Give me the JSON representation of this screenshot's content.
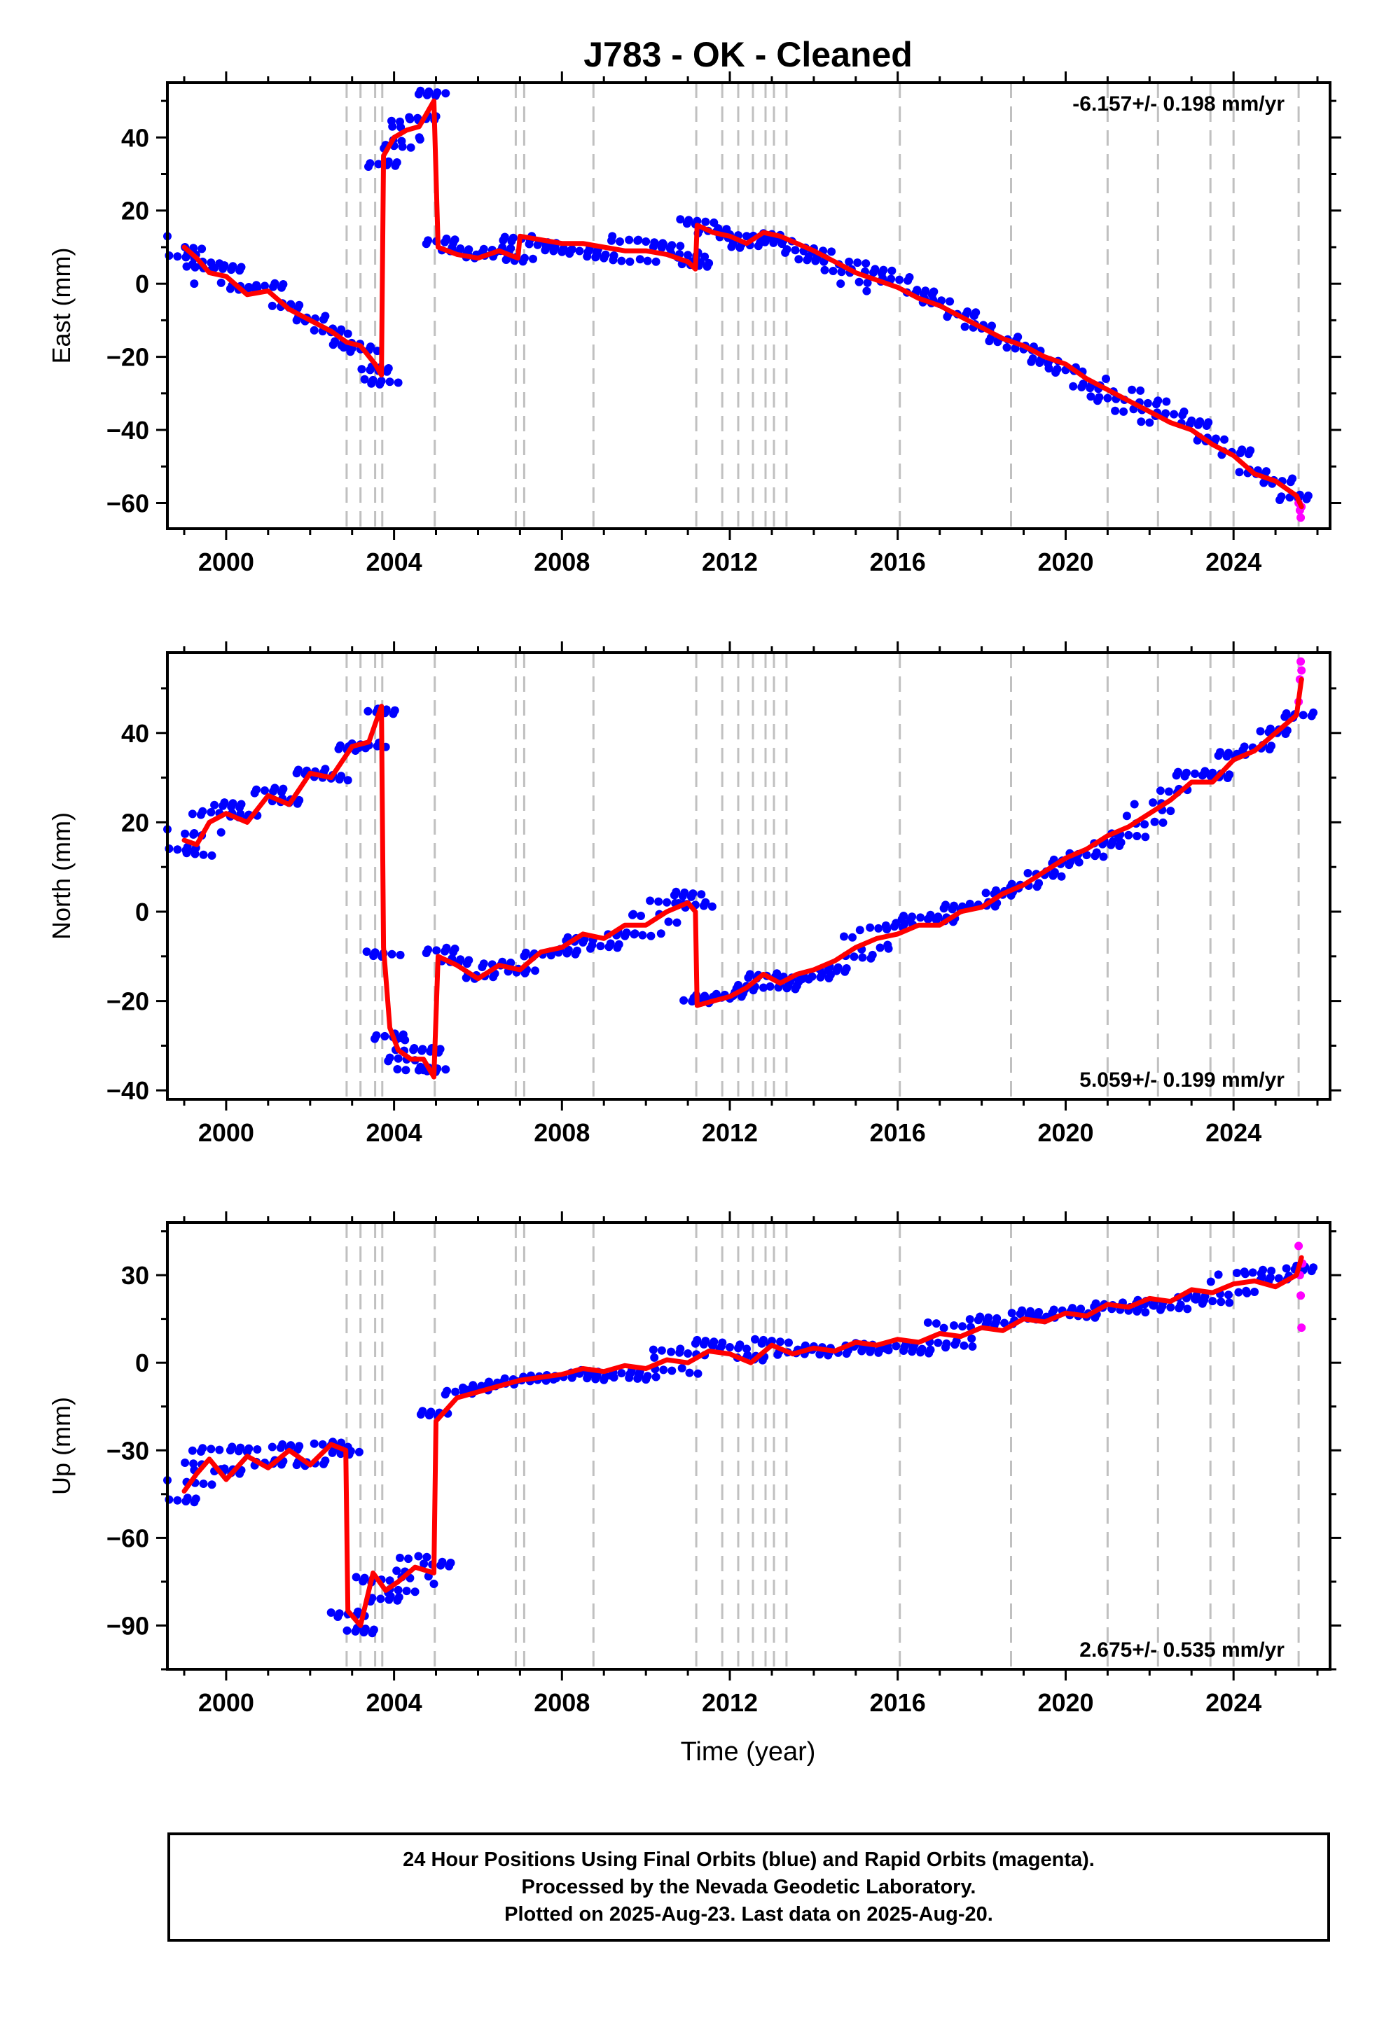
{
  "title": "J783  - OK - Cleaned",
  "colors": {
    "final_orbits": "#0000ff",
    "rapid_orbits": "#ff00ff",
    "model_fit": "#ff0000",
    "event_lines": "#c0c0c0",
    "frame": "#000000"
  },
  "footer": {
    "line1": "24 Hour Positions Using Final Orbits (blue) and Rapid Orbits (magenta).",
    "line2": "Processed by the Nevada Geodetic Laboratory.",
    "line3": "Plotted on 2025-Aug-23. Last data on 2025-Aug-20."
  },
  "chart_data": [
    {
      "type": "scatter",
      "component": "East",
      "ylabel": "East (mm)",
      "xlabel": "",
      "xlim": [
        1998.6,
        2026.3
      ],
      "ylim": [
        -67,
        55
      ],
      "xticks": [
        2000,
        2004,
        2008,
        2012,
        2016,
        2020,
        2024
      ],
      "yticks": [
        -60,
        -40,
        -20,
        0,
        20,
        40
      ],
      "rate_label": "-6.157+/- 0.198 mm/yr",
      "rate_position": "top-right",
      "event_lines": [
        2002.87,
        2003.2,
        2003.55,
        2003.72,
        2004.97,
        2006.9,
        2007.1,
        2008.75,
        2011.2,
        2011.82,
        2012.2,
        2012.55,
        2012.85,
        2013.05,
        2013.35,
        2016.05,
        2018.7,
        2021.0,
        2022.2,
        2023.45,
        2024.0,
        2025.55
      ],
      "series": [
        {
          "name": "Final Orbits",
          "color": "#0000ff",
          "kind": "points",
          "x": [
            1999.0,
            1999.3,
            1999.6,
            2000.0,
            2000.5,
            2001.0,
            2001.5,
            2002.0,
            2002.5,
            2002.87,
            2003.2,
            2003.55,
            2003.7,
            2003.75,
            2004.0,
            2004.3,
            2004.6,
            2004.95,
            2005.05,
            2005.5,
            2006.0,
            2006.5,
            2006.95,
            2007.0,
            2007.5,
            2008.0,
            2008.5,
            2009.0,
            2009.5,
            2010.0,
            2010.5,
            2011.0,
            2011.18,
            2011.22,
            2011.6,
            2012.0,
            2012.4,
            2012.8,
            2013.2,
            2013.6,
            2014.0,
            2014.5,
            2015.0,
            2015.5,
            2016.0,
            2016.5,
            2017.0,
            2017.5,
            2018.0,
            2018.5,
            2019.0,
            2019.5,
            2020.0,
            2020.5,
            2021.0,
            2021.5,
            2022.0,
            2022.5,
            2023.0,
            2023.5,
            2024.0,
            2024.5,
            2025.0,
            2025.5
          ],
          "y": [
            10,
            7,
            3,
            2,
            -3,
            -2,
            -7,
            -10,
            -13,
            -16,
            -17,
            -22,
            -25,
            35,
            40,
            42,
            43,
            50,
            10,
            8,
            7,
            9,
            7,
            13,
            12,
            11,
            11,
            10,
            9,
            9,
            8,
            6,
            4,
            16,
            14,
            13,
            11,
            14,
            13,
            11,
            9,
            6,
            3,
            1,
            -1,
            -4,
            -6,
            -9,
            -12,
            -15,
            -17,
            -20,
            -22,
            -26,
            -29,
            -32,
            -35,
            -38,
            -40,
            -44,
            -47,
            -52,
            -54,
            -58
          ]
        },
        {
          "name": "Rapid Orbits",
          "color": "#ff00ff",
          "kind": "points",
          "x": [
            2025.55,
            2025.58,
            2025.6,
            2025.62
          ],
          "y": [
            -60,
            -62,
            -64,
            -61
          ]
        },
        {
          "name": "Model",
          "color": "#ff0000",
          "kind": "line",
          "x": [
            1999.0,
            1999.3,
            1999.6,
            2000.0,
            2000.5,
            2001.0,
            2001.5,
            2002.0,
            2002.5,
            2002.87,
            2003.2,
            2003.55,
            2003.7,
            2003.75,
            2004.0,
            2004.3,
            2004.6,
            2004.95,
            2005.05,
            2005.5,
            2006.0,
            2006.5,
            2006.95,
            2007.0,
            2007.5,
            2008.0,
            2008.5,
            2009.0,
            2009.5,
            2010.0,
            2010.5,
            2011.0,
            2011.18,
            2011.22,
            2011.6,
            2012.0,
            2012.4,
            2012.8,
            2013.2,
            2013.6,
            2014.0,
            2014.5,
            2015.0,
            2015.5,
            2016.0,
            2016.5,
            2017.0,
            2017.5,
            2018.0,
            2018.5,
            2019.0,
            2019.5,
            2020.0,
            2020.5,
            2021.0,
            2021.5,
            2022.0,
            2022.5,
            2023.0,
            2023.5,
            2024.0,
            2024.5,
            2025.0,
            2025.5,
            2025.62
          ],
          "y": [
            10,
            7,
            3,
            2,
            -3,
            -2,
            -7,
            -10,
            -13,
            -16,
            -17,
            -22,
            -25,
            35,
            40,
            42,
            43,
            50,
            10,
            8,
            7,
            9,
            7,
            13,
            12,
            11,
            11,
            10,
            9,
            9,
            8,
            6,
            4,
            16,
            14,
            13,
            11,
            14,
            13,
            11,
            9,
            6,
            3,
            1,
            -1,
            -4,
            -6,
            -9,
            -12,
            -15,
            -17,
            -20,
            -22,
            -26,
            -29,
            -32,
            -35,
            -38,
            -40,
            -44,
            -47,
            -52,
            -54,
            -58,
            -61
          ]
        }
      ]
    },
    {
      "type": "scatter",
      "component": "North",
      "ylabel": "North (mm)",
      "xlabel": "",
      "xlim": [
        1998.6,
        2026.3
      ],
      "ylim": [
        -42,
        58
      ],
      "xticks": [
        2000,
        2004,
        2008,
        2012,
        2016,
        2020,
        2024
      ],
      "yticks": [
        -40,
        -20,
        0,
        20,
        40
      ],
      "rate_label": "5.059+/- 0.199 mm/yr",
      "rate_position": "bottom-right",
      "event_lines": [
        2002.87,
        2003.2,
        2003.55,
        2003.72,
        2004.97,
        2006.9,
        2007.1,
        2008.75,
        2011.2,
        2011.82,
        2012.2,
        2012.55,
        2012.85,
        2013.05,
        2013.35,
        2016.05,
        2018.7,
        2021.0,
        2022.2,
        2023.45,
        2024.0,
        2025.55
      ],
      "series": [
        {
          "name": "Final Orbits",
          "color": "#0000ff",
          "kind": "points",
          "x": [
            1999.0,
            1999.3,
            1999.6,
            2000.0,
            2000.5,
            2001.0,
            2001.5,
            2002.0,
            2002.5,
            2003.0,
            2003.4,
            2003.7,
            2003.75,
            2003.9,
            2004.1,
            2004.4,
            2004.7,
            2004.95,
            2005.05,
            2005.5,
            2006.0,
            2006.5,
            2007.0,
            2007.5,
            2008.0,
            2008.5,
            2009.0,
            2009.5,
            2010.0,
            2010.5,
            2011.0,
            2011.18,
            2011.22,
            2011.6,
            2012.0,
            2012.4,
            2012.8,
            2013.2,
            2013.6,
            2014.0,
            2014.5,
            2015.0,
            2015.5,
            2016.0,
            2016.5,
            2017.0,
            2017.5,
            2018.0,
            2018.5,
            2019.0,
            2019.5,
            2020.0,
            2020.5,
            2021.0,
            2021.5,
            2022.0,
            2022.5,
            2023.0,
            2023.5,
            2024.0,
            2024.5,
            2025.0,
            2025.5
          ],
          "y": [
            16,
            15,
            20,
            22,
            20,
            26,
            24,
            31,
            30,
            37,
            38,
            46,
            -8,
            -26,
            -31,
            -33,
            -33,
            -37,
            -10,
            -12,
            -15,
            -12,
            -13,
            -9,
            -8,
            -5,
            -6,
            -3,
            -3,
            0,
            2,
            0,
            -21,
            -20,
            -19,
            -17,
            -14,
            -16,
            -14,
            -13,
            -11,
            -8,
            -6,
            -5,
            -3,
            -3,
            0,
            1,
            4,
            6,
            9,
            12,
            14,
            17,
            19,
            22,
            25,
            29,
            29,
            34,
            36,
            40,
            44
          ]
        },
        {
          "name": "Rapid Orbits",
          "color": "#ff00ff",
          "kind": "points",
          "x": [
            2025.55,
            2025.58,
            2025.6,
            2025.62
          ],
          "y": [
            47,
            52,
            56,
            54
          ]
        },
        {
          "name": "Model",
          "color": "#ff0000",
          "kind": "line",
          "x": [
            1999.0,
            1999.3,
            1999.6,
            2000.0,
            2000.5,
            2001.0,
            2001.5,
            2002.0,
            2002.5,
            2003.0,
            2003.4,
            2003.7,
            2003.75,
            2003.9,
            2004.1,
            2004.4,
            2004.7,
            2004.95,
            2005.05,
            2005.5,
            2006.0,
            2006.5,
            2007.0,
            2007.5,
            2008.0,
            2008.5,
            2009.0,
            2009.5,
            2010.0,
            2010.5,
            2011.0,
            2011.18,
            2011.22,
            2011.6,
            2012.0,
            2012.4,
            2012.8,
            2013.2,
            2013.6,
            2014.0,
            2014.5,
            2015.0,
            2015.5,
            2016.0,
            2016.5,
            2017.0,
            2017.5,
            2018.0,
            2018.5,
            2019.0,
            2019.5,
            2020.0,
            2020.5,
            2021.0,
            2021.5,
            2022.0,
            2022.5,
            2023.0,
            2023.5,
            2024.0,
            2024.5,
            2025.0,
            2025.5,
            2025.62
          ],
          "y": [
            16,
            15,
            20,
            22,
            20,
            26,
            24,
            31,
            30,
            37,
            38,
            46,
            -8,
            -26,
            -31,
            -33,
            -33,
            -37,
            -10,
            -12,
            -15,
            -12,
            -13,
            -9,
            -8,
            -5,
            -6,
            -3,
            -3,
            0,
            2,
            0,
            -21,
            -20,
            -19,
            -17,
            -14,
            -16,
            -14,
            -13,
            -11,
            -8,
            -6,
            -5,
            -3,
            -3,
            0,
            1,
            4,
            6,
            9,
            12,
            14,
            17,
            19,
            22,
            25,
            29,
            29,
            34,
            36,
            40,
            44,
            52
          ]
        }
      ]
    },
    {
      "type": "scatter",
      "component": "Up",
      "ylabel": "Up (mm)",
      "xlabel": "Time (year)",
      "xlim": [
        1998.6,
        2026.3
      ],
      "ylim": [
        -105,
        48
      ],
      "xticks": [
        2000,
        2004,
        2008,
        2012,
        2016,
        2020,
        2024
      ],
      "yticks": [
        -90,
        -60,
        -30,
        0,
        30
      ],
      "rate_label": "2.675+/- 0.535 mm/yr",
      "rate_position": "bottom-right",
      "event_lines": [
        2002.87,
        2003.2,
        2003.55,
        2003.72,
        2004.97,
        2006.9,
        2007.1,
        2008.75,
        2011.2,
        2011.82,
        2012.2,
        2012.55,
        2012.85,
        2013.05,
        2013.35,
        2016.05,
        2018.7,
        2021.0,
        2022.2,
        2023.45,
        2024.0,
        2025.55
      ],
      "series": [
        {
          "name": "Final Orbits",
          "color": "#0000ff",
          "kind": "points",
          "x": [
            1999.0,
            1999.3,
            1999.6,
            2000.0,
            2000.5,
            2001.0,
            2001.5,
            2002.0,
            2002.5,
            2002.85,
            2002.9,
            2003.2,
            2003.5,
            2003.8,
            2004.1,
            2004.5,
            2004.95,
            2005.0,
            2005.5,
            2006.0,
            2006.5,
            2007.0,
            2007.5,
            2008.0,
            2008.5,
            2009.0,
            2009.5,
            2010.0,
            2010.5,
            2011.0,
            2011.5,
            2012.0,
            2012.5,
            2013.0,
            2013.5,
            2014.0,
            2014.5,
            2015.0,
            2015.5,
            2016.0,
            2016.5,
            2017.0,
            2017.5,
            2018.0,
            2018.5,
            2019.0,
            2019.5,
            2020.0,
            2020.5,
            2021.0,
            2021.5,
            2022.0,
            2022.5,
            2023.0,
            2023.5,
            2024.0,
            2024.5,
            2025.0,
            2025.5
          ],
          "y": [
            -44,
            -38,
            -33,
            -40,
            -32,
            -36,
            -30,
            -35,
            -28,
            -30,
            -85,
            -90,
            -72,
            -78,
            -75,
            -70,
            -72,
            -20,
            -12,
            -10,
            -8,
            -6,
            -5,
            -4,
            -2,
            -3,
            -1,
            -2,
            1,
            0,
            4,
            3,
            0,
            6,
            3,
            5,
            4,
            7,
            6,
            8,
            7,
            10,
            9,
            12,
            11,
            15,
            14,
            17,
            16,
            20,
            19,
            22,
            21,
            25,
            24,
            27,
            28,
            26,
            30
          ]
        },
        {
          "name": "Rapid Orbits",
          "color": "#ff00ff",
          "kind": "points",
          "x": [
            2025.55,
            2025.58,
            2025.6,
            2025.62,
            2025.64
          ],
          "y": [
            40,
            30,
            23,
            12,
            34
          ]
        },
        {
          "name": "Model",
          "color": "#ff0000",
          "kind": "line",
          "x": [
            1999.0,
            1999.3,
            1999.6,
            2000.0,
            2000.5,
            2001.0,
            2001.5,
            2002.0,
            2002.5,
            2002.85,
            2002.9,
            2003.2,
            2003.5,
            2003.8,
            2004.1,
            2004.5,
            2004.95,
            2005.0,
            2005.5,
            2006.0,
            2006.5,
            2007.0,
            2007.5,
            2008.0,
            2008.5,
            2009.0,
            2009.5,
            2010.0,
            2010.5,
            2011.0,
            2011.5,
            2012.0,
            2012.5,
            2013.0,
            2013.5,
            2014.0,
            2014.5,
            2015.0,
            2015.5,
            2016.0,
            2016.5,
            2017.0,
            2017.5,
            2018.0,
            2018.5,
            2019.0,
            2019.5,
            2020.0,
            2020.5,
            2021.0,
            2021.5,
            2022.0,
            2022.5,
            2023.0,
            2023.5,
            2024.0,
            2024.5,
            2025.0,
            2025.5,
            2025.62
          ],
          "y": [
            -44,
            -38,
            -33,
            -40,
            -32,
            -36,
            -30,
            -35,
            -28,
            -30,
            -85,
            -90,
            -72,
            -78,
            -75,
            -70,
            -72,
            -20,
            -12,
            -10,
            -8,
            -6,
            -5,
            -4,
            -2,
            -3,
            -1,
            -2,
            1,
            0,
            4,
            3,
            0,
            6,
            3,
            5,
            4,
            7,
            6,
            8,
            7,
            10,
            9,
            12,
            11,
            15,
            14,
            17,
            16,
            20,
            19,
            22,
            21,
            25,
            24,
            27,
            28,
            26,
            30,
            36
          ]
        }
      ]
    }
  ]
}
